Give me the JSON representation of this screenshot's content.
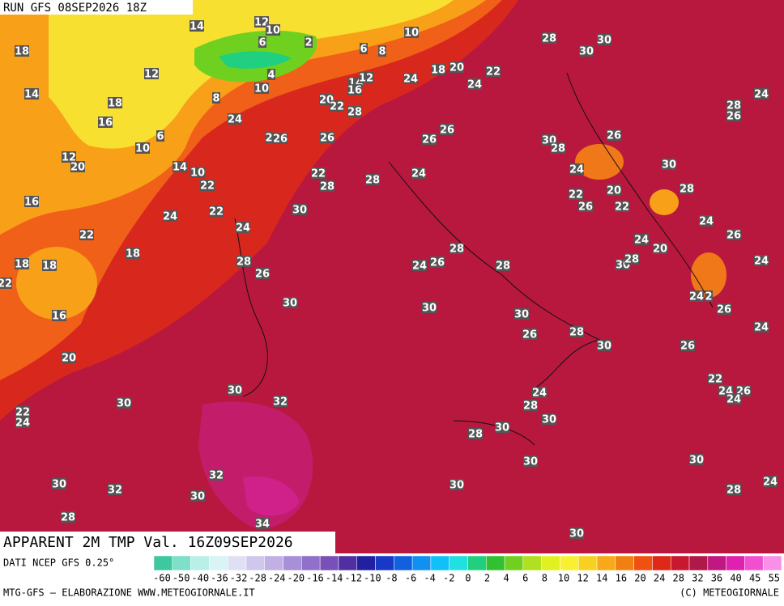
{
  "header": {
    "run": "RUN GFS 08SEP2026 18Z"
  },
  "footer": {
    "title": "APPARENT 2M TMP Val. 16Z09SEP2026",
    "source": "DATI NCEP GFS 0.25°",
    "credit": "MTG-GFS — ELABORAZIONE WWW.METEOGIORNALE.IT",
    "copyright": "(C) METEOGIORNALE"
  },
  "legend": {
    "labels": [
      -60,
      -50,
      -40,
      -36,
      -32,
      -28,
      -24,
      -20,
      -16,
      -14,
      -12,
      -10,
      -8,
      -6,
      -4,
      -2,
      0,
      2,
      4,
      6,
      8,
      10,
      12,
      14,
      16,
      20,
      24,
      28,
      32,
      36,
      40,
      45,
      55
    ],
    "colors": [
      "#3ec8a0",
      "#7ee0c8",
      "#b8f0e8",
      "#d8f4f4",
      "#e0e0f4",
      "#d0c8ec",
      "#c0b0e4",
      "#a890d8",
      "#9070c8",
      "#7850b8",
      "#5030a0",
      "#2020a0",
      "#1838c8",
      "#1060e0",
      "#1090f0",
      "#10c0f8",
      "#20e0e0",
      "#20d080",
      "#30c030",
      "#70d020",
      "#b0e020",
      "#e0f020",
      "#f8f030",
      "#f8d020",
      "#f8a818",
      "#f08010",
      "#f05010",
      "#e02818",
      "#c81830",
      "#b0184a",
      "#c01880",
      "#e020b0",
      "#f050d0",
      "#f890e8"
    ]
  },
  "contour_labels": [
    14,
    12,
    10,
    10,
    28,
    30,
    18,
    2,
    6,
    6,
    8,
    30,
    12,
    4,
    10,
    14,
    12,
    24,
    18,
    20,
    24,
    22,
    14,
    18,
    8,
    20,
    22,
    16,
    28,
    24,
    28,
    26,
    16,
    24,
    26,
    26,
    6,
    2,
    26,
    26,
    26,
    30,
    28,
    10,
    12,
    20,
    24,
    30,
    14,
    10,
    22,
    28,
    24,
    22,
    28,
    20,
    28,
    22,
    26,
    22,
    16,
    24,
    22,
    30,
    24,
    24,
    22,
    26,
    24,
    20,
    18,
    28,
    28,
    26,
    24,
    28,
    30,
    18,
    18,
    28,
    24,
    26,
    22,
    24,
    2,
    30,
    30,
    30,
    26,
    16,
    26,
    28,
    24,
    30,
    26,
    20,
    22,
    30,
    24,
    24,
    26,
    24,
    30,
    32,
    28,
    22,
    24,
    30,
    30,
    28,
    30,
    30,
    32,
    24,
    30,
    32,
    30,
    30,
    28,
    28,
    34,
    30
  ]
}
